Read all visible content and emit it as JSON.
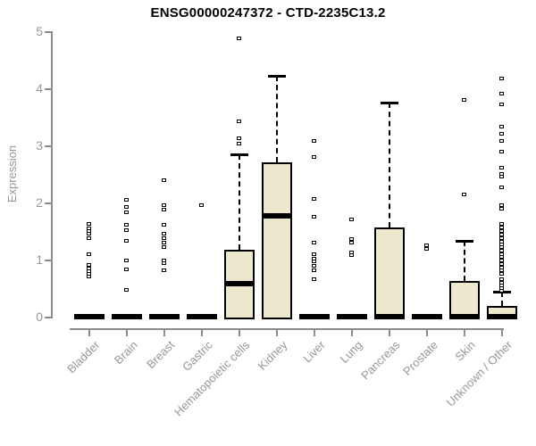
{
  "chart_data": {
    "type": "boxplot",
    "title": "ENSG00000247372 - CTD-2235C13.2",
    "ylabel": "Expression",
    "ylim": [
      0,
      5
    ],
    "yticks": [
      0,
      1,
      2,
      3,
      4,
      5
    ],
    "grid": false,
    "legend": "none",
    "box_fill_color": "#ece7cd",
    "box_line_color": "#000000",
    "axis_color": "#8c8c8c",
    "label_color": "#979797",
    "categories": [
      "Bladder",
      "Brain",
      "Breast",
      "Gastric",
      "Hematopoietic cells",
      "Kidney",
      "Liver",
      "Lung",
      "Pancreas",
      "Prostate",
      "Skin",
      "Unknown / Other"
    ],
    "series": [
      {
        "category": "Bladder",
        "q1": 0,
        "median": 0,
        "q3": 0,
        "whisker_low": 0,
        "whisker_high": 0,
        "outliers": [
          1.62,
          1.55,
          1.5,
          1.45,
          1.38,
          1.09,
          0.9,
          0.85,
          0.8,
          0.75,
          0.7
        ]
      },
      {
        "category": "Brain",
        "q1": 0,
        "median": 0,
        "q3": 0,
        "whisker_low": 0,
        "whisker_high": 0,
        "outliers": [
          2.05,
          1.92,
          1.83,
          1.61,
          1.52,
          1.33,
          0.98,
          0.83,
          0.47
        ]
      },
      {
        "category": "Breast",
        "q1": 0,
        "median": 0,
        "q3": 0,
        "whisker_low": 0,
        "whisker_high": 0,
        "outliers": [
          2.39,
          1.95,
          1.87,
          1.61,
          1.45,
          1.38,
          1.3,
          1.22,
          0.98,
          0.94,
          0.81
        ]
      },
      {
        "category": "Gastric",
        "q1": 0,
        "median": 0,
        "q3": 0,
        "whisker_low": 0,
        "whisker_high": 0,
        "outliers": [
          1.95
        ]
      },
      {
        "category": "Hematopoietic cells",
        "q1": 0,
        "median": 0.58,
        "q3": 1.17,
        "whisker_low": 0,
        "whisker_high": 2.84,
        "outliers": [
          4.88,
          3.42,
          3.12,
          3.03
        ]
      },
      {
        "category": "Kidney",
        "q1": 0,
        "median": 1.77,
        "q3": 2.71,
        "whisker_low": 0,
        "whisker_high": 4.22,
        "outliers": []
      },
      {
        "category": "Liver",
        "q1": 0,
        "median": 0,
        "q3": 0,
        "whisker_low": 0,
        "whisker_high": 0,
        "outliers": [
          3.08,
          2.8,
          2.06,
          1.75,
          1.3,
          1.09,
          1.02,
          0.97,
          0.89,
          0.81,
          0.66
        ]
      },
      {
        "category": "Lung",
        "q1": 0,
        "median": 0,
        "q3": 0,
        "whisker_low": 0,
        "whisker_high": 0,
        "outliers": [
          1.7,
          1.36,
          1.3,
          1.13,
          1.08
        ]
      },
      {
        "category": "Pancreas",
        "q1": 0,
        "median": 0,
        "q3": 1.56,
        "whisker_low": 0,
        "whisker_high": 3.75,
        "outliers": []
      },
      {
        "category": "Prostate",
        "q1": 0,
        "median": 0,
        "q3": 0,
        "whisker_low": 0,
        "whisker_high": 0,
        "outliers": [
          1.25,
          1.18
        ]
      },
      {
        "category": "Skin",
        "q1": 0,
        "median": 0,
        "q3": 0.63,
        "whisker_low": 0,
        "whisker_high": 1.33,
        "outliers": [
          3.8,
          2.14
        ]
      },
      {
        "category": "Unknown / Other",
        "q1": 0,
        "median": 0,
        "q3": 0.19,
        "whisker_low": 0,
        "whisker_high": 0.44,
        "outliers": [
          4.17,
          3.91,
          3.72,
          3.33,
          3.2,
          3.08,
          2.89,
          2.61,
          2.5,
          2.45,
          2.27,
          1.95,
          1.89,
          1.62,
          1.56,
          1.5,
          1.44,
          1.38,
          1.32,
          1.27,
          1.22,
          1.16,
          1.1,
          1.04,
          0.98,
          0.92,
          0.86,
          0.81,
          0.75,
          0.66,
          0.6,
          0.55,
          0.5,
          0.45
        ]
      }
    ]
  }
}
